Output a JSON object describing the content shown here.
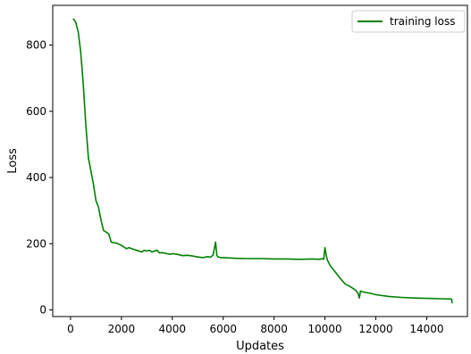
{
  "chart_data": {
    "type": "line",
    "title": "",
    "xlabel": "Updates",
    "ylabel": "Loss",
    "xlim": [
      -700,
      15600
    ],
    "ylim": [
      -20,
      920
    ],
    "xticks": [
      0,
      2000,
      4000,
      6000,
      8000,
      10000,
      12000,
      14000
    ],
    "yticks": [
      0,
      200,
      400,
      600,
      800
    ],
    "grid": false,
    "legend_position": "top-right",
    "series": [
      {
        "name": "training loss",
        "color": "#008000",
        "x": [
          100,
          200,
          300,
          400,
          500,
          600,
          700,
          800,
          900,
          1000,
          1100,
          1200,
          1300,
          1400,
          1500,
          1600,
          1700,
          1800,
          2000,
          2200,
          2300,
          2400,
          2600,
          2800,
          2900,
          3000,
          3100,
          3200,
          3300,
          3400,
          3500,
          3600,
          3800,
          3900,
          4000,
          4200,
          4400,
          4600,
          4800,
          5000,
          5200,
          5400,
          5500,
          5600,
          5650,
          5700,
          5750,
          5800,
          5900,
          6000,
          6500,
          7000,
          7500,
          8000,
          8500,
          9000,
          9500,
          9800,
          9900,
          9950,
          10000,
          10050,
          10100,
          10200,
          10300,
          10400,
          10600,
          10800,
          11000,
          11200,
          11300,
          11350,
          11400,
          11500,
          11800,
          12000,
          12500,
          13000,
          13500,
          14000,
          14500,
          14950,
          14980,
          15000
        ],
        "y": [
          880,
          870,
          840,
          780,
          680,
          560,
          460,
          420,
          380,
          330,
          310,
          270,
          240,
          235,
          230,
          205,
          203,
          202,
          195,
          185,
          188,
          185,
          180,
          175,
          180,
          178,
          180,
          175,
          178,
          180,
          172,
          173,
          170,
          168,
          170,
          168,
          164,
          165,
          163,
          160,
          158,
          161,
          159,
          165,
          185,
          205,
          165,
          160,
          158,
          158,
          156,
          155,
          155,
          154,
          154,
          153,
          154,
          153,
          155,
          153,
          188,
          165,
          150,
          135,
          125,
          115,
          95,
          78,
          70,
          60,
          50,
          36,
          57,
          54,
          50,
          46,
          41,
          38,
          36,
          35,
          34,
          33,
          32,
          20
        ]
      }
    ]
  }
}
